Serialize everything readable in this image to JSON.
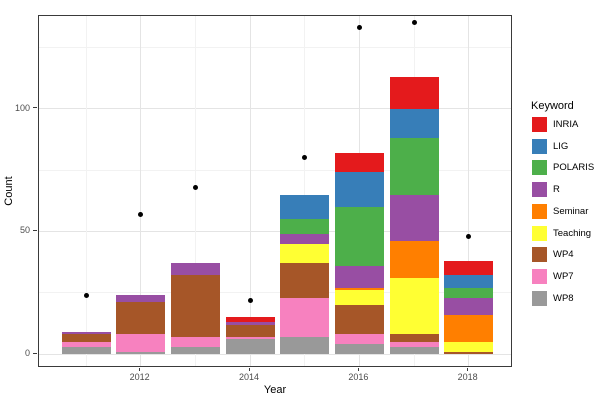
{
  "axes": {
    "x": {
      "title": "Year",
      "tick_labels": [
        "2012",
        "2014",
        "2016",
        "2018"
      ]
    },
    "y": {
      "title": "Count",
      "tick_labels": [
        "0",
        "50",
        "100"
      ]
    }
  },
  "legend": {
    "title": "Keyword",
    "items": [
      {
        "label": "INRIA",
        "color": "#E41A1C"
      },
      {
        "label": "LIG",
        "color": "#377EB8"
      },
      {
        "label": "POLARIS",
        "color": "#4DAF4A"
      },
      {
        "label": "R",
        "color": "#984EA3"
      },
      {
        "label": "Seminar",
        "color": "#FF7F00"
      },
      {
        "label": "Teaching",
        "color": "#FFFF33"
      },
      {
        "label": "WP4",
        "color": "#A65628"
      },
      {
        "label": "WP7",
        "color": "#F781BF"
      },
      {
        "label": "WP8",
        "color": "#999999"
      }
    ]
  },
  "chart_data": {
    "type": "bar",
    "stacked": true,
    "title": "",
    "xlabel": "Year",
    "ylabel": "Count",
    "categories": [
      2011,
      2012,
      2013,
      2014,
      2015,
      2016,
      2017,
      2018
    ],
    "series": [
      {
        "name": "WP8",
        "color": "#999999",
        "values": [
          3,
          1,
          3,
          6,
          7,
          4,
          3,
          0
        ]
      },
      {
        "name": "WP7",
        "color": "#F781BF",
        "values": [
          2,
          7,
          4,
          1,
          16,
          4,
          2,
          0
        ]
      },
      {
        "name": "WP4",
        "color": "#A65628",
        "values": [
          3,
          13,
          25,
          5,
          14,
          12,
          3,
          1
        ]
      },
      {
        "name": "Teaching",
        "color": "#FFFF33",
        "values": [
          0,
          0,
          0,
          0,
          8,
          6,
          23,
          4
        ]
      },
      {
        "name": "Seminar",
        "color": "#FF7F00",
        "values": [
          0,
          0,
          0,
          0,
          0,
          1,
          15,
          11
        ]
      },
      {
        "name": "R",
        "color": "#984EA3",
        "values": [
          1,
          3,
          5,
          1,
          4,
          9,
          19,
          7
        ]
      },
      {
        "name": "POLARIS",
        "color": "#4DAF4A",
        "values": [
          0,
          0,
          0,
          0,
          6,
          24,
          23,
          4
        ]
      },
      {
        "name": "LIG",
        "color": "#377EB8",
        "values": [
          0,
          0,
          0,
          0,
          10,
          14,
          12,
          5
        ]
      },
      {
        "name": "INRIA",
        "color": "#E41A1C",
        "values": [
          0,
          0,
          0,
          2,
          0,
          8,
          13,
          6
        ]
      }
    ],
    "stack_totals": [
      9,
      24,
      37,
      15,
      65,
      82,
      113,
      38
    ],
    "points": {
      "shape": "circle",
      "color": "#000000",
      "values": [
        24,
        57,
        68,
        22,
        80,
        133,
        135,
        48
      ]
    },
    "x_major_ticks": [
      2012,
      2014,
      2016,
      2018
    ],
    "x_minor_gridlines": [
      2011,
      2013,
      2015,
      2017
    ],
    "y_major_ticks": [
      0,
      50,
      100
    ],
    "y_minor_gridlines": [
      25,
      75,
      125
    ],
    "ylim": [
      -6,
      138
    ],
    "grid": true,
    "legend_position": "right"
  },
  "colors": {
    "grid_major": "#e4e4e4",
    "grid_minor": "#f2f2f2",
    "panel_border": "#3a3a3a",
    "tick_label": "#4d4d4d",
    "point": "#000000",
    "background": "#ffffff"
  }
}
